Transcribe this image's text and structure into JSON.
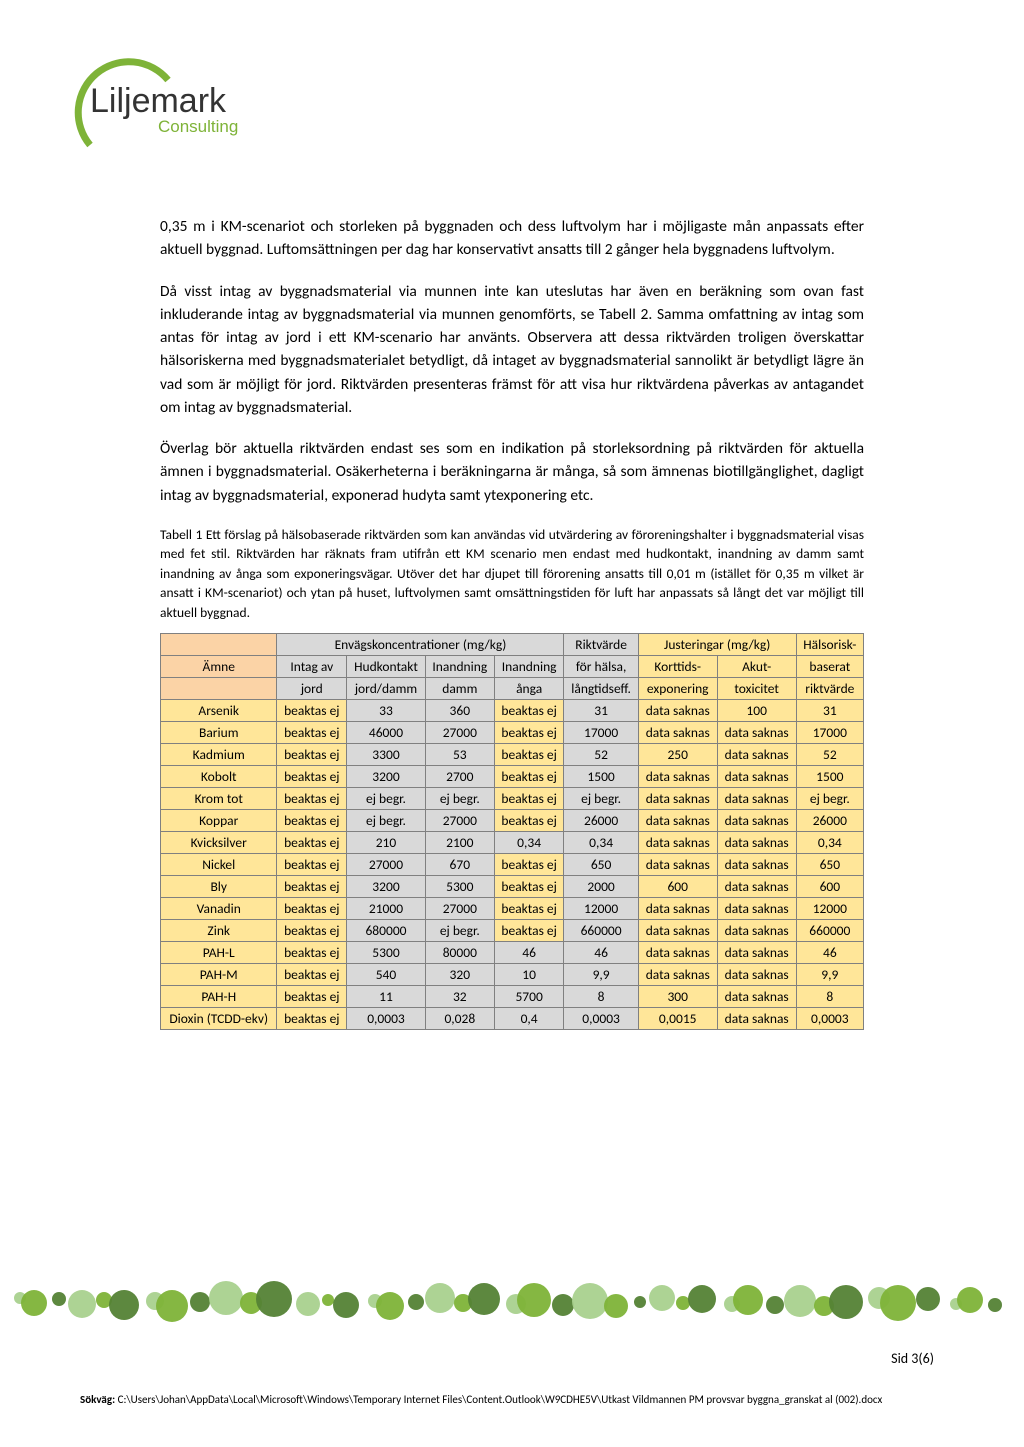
{
  "logo": {
    "name": "Liljemark",
    "sub": "Consulting",
    "green": "#7eb338",
    "dark": "#2a6b2a"
  },
  "paragraphs": {
    "p1": "0,35 m i KM-scenariot och storleken på byggnaden och dess luftvolym har i möjligaste mån anpassats efter aktuell byggnad. Luftomsättningen per dag har konservativt ansatts till 2 gånger hela byggnadens luftvolym.",
    "p2": "Då visst intag av byggnadsmaterial via munnen inte kan uteslutas har även en beräkning som ovan fast inkluderande intag av byggnadsmaterial via munnen genomförts, se Tabell 2. Samma omfattning av intag som antas för intag av jord i ett KM-scenario har använts. Observera att dessa riktvärden troligen överskattar hälsoriskerna med byggnadsmaterialet betydligt, då intaget av byggnadsmaterial sannolikt är betydligt lägre än vad som är möjligt för jord. Riktvärden presenteras främst för att visa hur riktvärdena påverkas av antagandet om intag av byggnadsmaterial.",
    "p3": "Överlag bör aktuella riktvärden endast ses som en indikation på storleksordning på riktvärden för aktuella ämnen i byggnadsmaterial. Osäkerheterna i beräkningarna är många, så som ämnenas biotillgänglighet, dagligt intag av byggnadsmaterial, exponerad hudyta samt ytexponering etc.",
    "caption": "Tabell 1 Ett förslag på hälsobaserade riktvärden som kan användas vid utvärdering av föroreningshalter i byggnadsmaterial visas med fet stil. Riktvärden har räknats fram utifrån ett KM scenario men endast med hudkontakt, inandning av damm samt inandning av ånga som exponeringsvägar. Utöver det har djupet till förorening ansatts till 0,01 m (istället för 0,35 m vilket är ansatt i KM-scenariot) och ytan på huset, luftvolymen samt omsättningstiden för luft har anpassats så långt det var möjligt till aktuell byggnad."
  },
  "table": {
    "group_headers": {
      "envags": "Envägskoncentrationer (mg/kg)",
      "rikt": "Riktvärde",
      "just": "Justeringar (mg/kg)",
      "hals": "Hälsorisk-"
    },
    "headers": {
      "amne": "Ämne",
      "intag": "Intag av",
      "intag2": "jord",
      "hud": "Hudkontakt",
      "hud2": "jord/damm",
      "damm": "Inandning",
      "damm2": "damm",
      "anga": "Inandning",
      "anga2": "ånga",
      "halsa": "för hälsa,",
      "halsa2": "långtidseff.",
      "kort": "Korttids-",
      "kort2": "exponering",
      "akut": "Akut-",
      "akut2": "toxicitet",
      "bas": "baserat",
      "bas2": "riktvärde"
    },
    "colors": {
      "header_orange": "#fbd3a6",
      "header_yellow": "#ffe699",
      "header_grey": "#d9d9d9",
      "cell_yellow": "#ffe699",
      "cell_grey": "#d9d9d9",
      "border": "#808080"
    },
    "rows": [
      {
        "name": "Arsenik",
        "intag": "beaktas ej",
        "hud": "33",
        "damm": "360",
        "anga": "beaktas ej",
        "halsa": "31",
        "kort": "data saknas",
        "akut": "100",
        "bas": "31",
        "anga_grey": false
      },
      {
        "name": "Barium",
        "intag": "beaktas ej",
        "hud": "46000",
        "damm": "27000",
        "anga": "beaktas ej",
        "halsa": "17000",
        "kort": "data saknas",
        "akut": "data saknas",
        "bas": "17000",
        "anga_grey": false
      },
      {
        "name": "Kadmium",
        "intag": "beaktas ej",
        "hud": "3300",
        "damm": "53",
        "anga": "beaktas ej",
        "halsa": "52",
        "kort": "250",
        "akut": "data saknas",
        "bas": "52",
        "anga_grey": false
      },
      {
        "name": "Kobolt",
        "intag": "beaktas ej",
        "hud": "3200",
        "damm": "2700",
        "anga": "beaktas ej",
        "halsa": "1500",
        "kort": "data saknas",
        "akut": "data saknas",
        "bas": "1500",
        "anga_grey": false
      },
      {
        "name": "Krom tot",
        "intag": "beaktas ej",
        "hud": "ej begr.",
        "damm": "ej begr.",
        "anga": "beaktas ej",
        "halsa": "ej begr.",
        "kort": "data saknas",
        "akut": "data saknas",
        "bas": "ej begr.",
        "anga_grey": false
      },
      {
        "name": "Koppar",
        "intag": "beaktas ej",
        "hud": "ej begr.",
        "damm": "27000",
        "anga": "beaktas ej",
        "halsa": "26000",
        "kort": "data saknas",
        "akut": "data saknas",
        "bas": "26000",
        "anga_grey": false
      },
      {
        "name": "Kvicksilver",
        "intag": "beaktas ej",
        "hud": "210",
        "damm": "2100",
        "anga": "0,34",
        "halsa": "0,34",
        "kort": "data saknas",
        "akut": "data saknas",
        "bas": "0,34",
        "anga_grey": true
      },
      {
        "name": "Nickel",
        "intag": "beaktas ej",
        "hud": "27000",
        "damm": "670",
        "anga": "beaktas ej",
        "halsa": "650",
        "kort": "data saknas",
        "akut": "data saknas",
        "bas": "650",
        "anga_grey": false
      },
      {
        "name": "Bly",
        "intag": "beaktas ej",
        "hud": "3200",
        "damm": "5300",
        "anga": "beaktas ej",
        "halsa": "2000",
        "kort": "600",
        "akut": "data saknas",
        "bas": "600",
        "anga_grey": false
      },
      {
        "name": "Vanadin",
        "intag": "beaktas ej",
        "hud": "21000",
        "damm": "27000",
        "anga": "beaktas ej",
        "halsa": "12000",
        "kort": "data saknas",
        "akut": "data saknas",
        "bas": "12000",
        "anga_grey": false
      },
      {
        "name": "Zink",
        "intag": "beaktas ej",
        "hud": "680000",
        "damm": "ej begr.",
        "anga": "beaktas ej",
        "halsa": "660000",
        "kort": "data saknas",
        "akut": "data saknas",
        "bas": "660000",
        "anga_grey": false
      },
      {
        "name": "PAH-L",
        "intag": "beaktas ej",
        "hud": "5300",
        "damm": "80000",
        "anga": "46",
        "halsa": "46",
        "kort": "data saknas",
        "akut": "data saknas",
        "bas": "46",
        "anga_grey": true
      },
      {
        "name": "PAH-M",
        "intag": "beaktas ej",
        "hud": "540",
        "damm": "320",
        "anga": "10",
        "halsa": "9,9",
        "kort": "data saknas",
        "akut": "data saknas",
        "bas": "9,9",
        "anga_grey": true
      },
      {
        "name": "PAH-H",
        "intag": "beaktas ej",
        "hud": "11",
        "damm": "32",
        "anga": "5700",
        "halsa": "8",
        "kort": "300",
        "akut": "data saknas",
        "bas": "8",
        "anga_grey": true
      },
      {
        "name": "Dioxin (TCDD-ekv)",
        "intag": "beaktas ej",
        "hud": "0,0003",
        "damm": "0,028",
        "anga": "0,4",
        "halsa": "0,0003",
        "kort": "0,0015",
        "akut": "data saknas",
        "bas": "0,0003",
        "anga_grey": true
      }
    ]
  },
  "footer": {
    "page_label": "Sid 3(6)",
    "path_label": "Sökväg: ",
    "path": "C:\\Users\\Johan\\AppData\\Local\\Microsoft\\Windows\\Temporary Internet Files\\Content.Outlook\\W9CDHE5V\\Utkast Vildmannen PM provsvar byggna_granskat al (002).docx",
    "dot_colors": {
      "light": "#a9d18e",
      "mid": "#7eb338",
      "dark": "#548235"
    }
  }
}
